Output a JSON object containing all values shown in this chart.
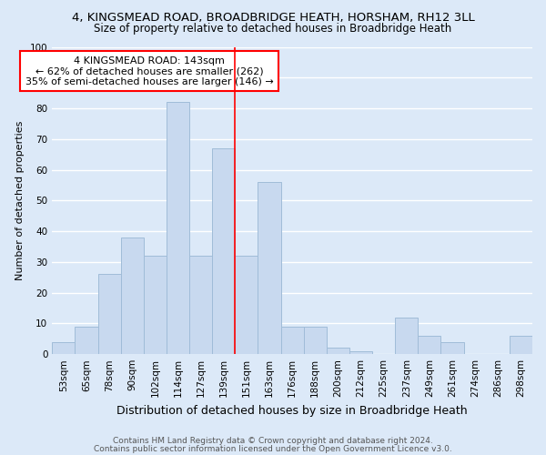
{
  "title": "4, KINGSMEAD ROAD, BROADBRIDGE HEATH, HORSHAM, RH12 3LL",
  "subtitle": "Size of property relative to detached houses in Broadbridge Heath",
  "xlabel": "Distribution of detached houses by size in Broadbridge Heath",
  "ylabel": "Number of detached properties",
  "footer1": "Contains HM Land Registry data © Crown copyright and database right 2024.",
  "footer2": "Contains public sector information licensed under the Open Government Licence v3.0.",
  "bar_labels": [
    "53sqm",
    "65sqm",
    "78sqm",
    "90sqm",
    "102sqm",
    "114sqm",
    "127sqm",
    "139sqm",
    "151sqm",
    "163sqm",
    "176sqm",
    "188sqm",
    "200sqm",
    "212sqm",
    "225sqm",
    "237sqm",
    "249sqm",
    "261sqm",
    "274sqm",
    "286sqm",
    "298sqm"
  ],
  "bar_values": [
    4,
    9,
    26,
    38,
    32,
    82,
    32,
    67,
    32,
    56,
    9,
    9,
    2,
    1,
    0,
    12,
    6,
    4,
    0,
    0,
    6
  ],
  "bar_color": "#c8d9ef",
  "bar_edge_color": "#a0bcd8",
  "vline_x": 7.5,
  "annotation_text1": "4 KINGSMEAD ROAD: 143sqm",
  "annotation_text2": "← 62% of detached houses are smaller (262)",
  "annotation_text3": "35% of semi-detached houses are larger (146) →",
  "ylim": [
    0,
    100
  ],
  "background_color": "#dce9f8",
  "plot_bg_color": "#dce9f8",
  "grid_color": "#ffffff",
  "title_fontsize": 9.5,
  "subtitle_fontsize": 8.5,
  "xlabel_fontsize": 9,
  "ylabel_fontsize": 8,
  "tick_fontsize": 7.5,
  "footer_fontsize": 6.5
}
